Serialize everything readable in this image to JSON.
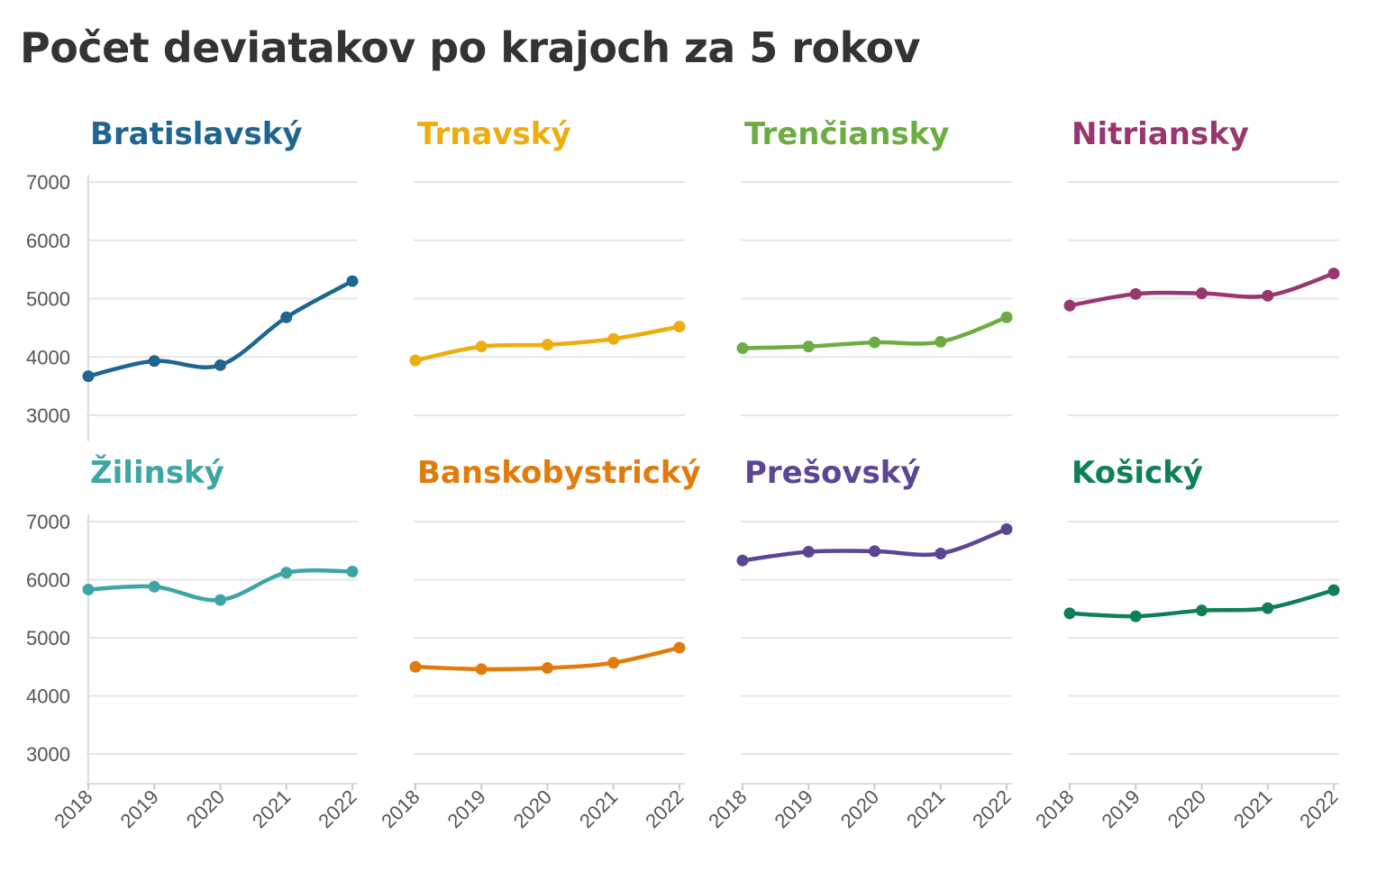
{
  "title": "Počet deviatakov po krajoch za 5 rokov",
  "chart_data": {
    "type": "line",
    "layout": "small-multiples",
    "x": [
      "2018",
      "2019",
      "2020",
      "2021",
      "2022"
    ],
    "y_ticks": [
      "3000",
      "4000",
      "5000",
      "6000",
      "7000"
    ],
    "ylim": [
      2500,
      7000
    ],
    "grid": true,
    "panels": [
      {
        "name": "Bratislavský",
        "color": "#1f6591",
        "values": [
          3670,
          3930,
          3860,
          4680,
          5300
        ]
      },
      {
        "name": "Trnavský",
        "color": "#edac0f",
        "values": [
          3940,
          4180,
          4210,
          4310,
          4520
        ]
      },
      {
        "name": "Trenčiansky",
        "color": "#6cac43",
        "values": [
          4150,
          4180,
          4250,
          4260,
          4680
        ]
      },
      {
        "name": "Nitriansky",
        "color": "#993670",
        "values": [
          4880,
          5080,
          5090,
          5050,
          5430
        ]
      },
      {
        "name": "Žilinský",
        "color": "#3da6a5",
        "values": [
          5830,
          5880,
          5650,
          6120,
          6140
        ]
      },
      {
        "name": "Banskobystrický",
        "color": "#e07b0c",
        "values": [
          4500,
          4460,
          4480,
          4570,
          4830
        ]
      },
      {
        "name": "Prešovský",
        "color": "#5b4595",
        "values": [
          6330,
          6480,
          6490,
          6450,
          6870
        ]
      },
      {
        "name": "Košický",
        "color": "#0f8054",
        "values": [
          5420,
          5370,
          5470,
          5510,
          5820
        ]
      }
    ]
  }
}
